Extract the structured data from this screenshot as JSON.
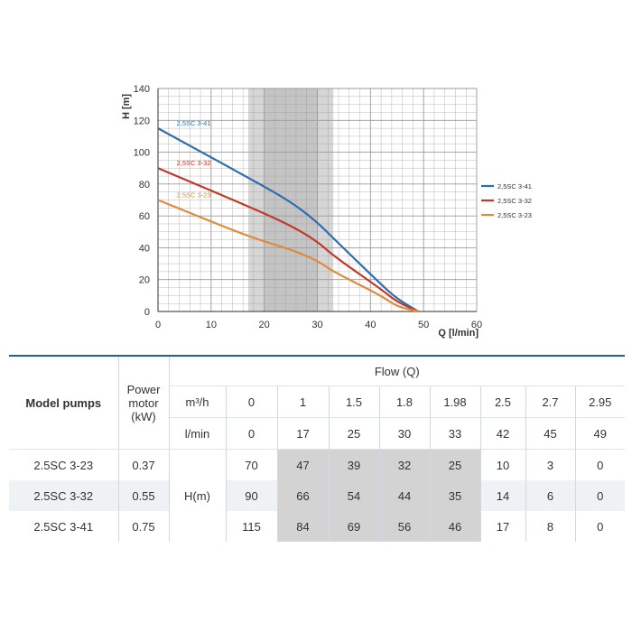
{
  "chart_data": {
    "type": "line",
    "xlabel": "Q [l/min]",
    "ylabel": "H [m]",
    "xlim": [
      0,
      60
    ],
    "ylim": [
      0,
      140
    ],
    "x_ticks": [
      0,
      10,
      20,
      30,
      40,
      50,
      60
    ],
    "y_ticks": [
      0,
      20,
      40,
      60,
      80,
      100,
      120,
      140
    ],
    "highlight_band": [
      17,
      33
    ],
    "grid": true,
    "legend": "right",
    "series": [
      {
        "name": "2,5SC 3-41",
        "color": "#2d6fad",
        "x": [
          0,
          17,
          25,
          30,
          33,
          42,
          45,
          49
        ],
        "y": [
          115,
          84,
          69,
          56,
          46,
          17,
          8,
          0
        ]
      },
      {
        "name": "2,5SC 3-32",
        "color": "#c0392b",
        "x": [
          0,
          17,
          25,
          30,
          33,
          42,
          45,
          49
        ],
        "y": [
          90,
          66,
          54,
          44,
          35,
          14,
          6,
          0
        ]
      },
      {
        "name": "2,5SC 3-23",
        "color": "#e08a3c",
        "x": [
          0,
          17,
          25,
          30,
          33,
          42,
          45,
          49
        ],
        "y": [
          70,
          47,
          39,
          32,
          25,
          10,
          3,
          0
        ]
      }
    ]
  },
  "table": {
    "model_header": "Model pumps",
    "power_header": "Power motor (kW)",
    "flow_header": "Flow (Q)",
    "m3h_label": "m³/h",
    "lmin_label": "l/min",
    "h_label": "H(m)",
    "m3h": [
      "0",
      "1",
      "1.5",
      "1.8",
      "1.98",
      "2.5",
      "2.7",
      "2.95"
    ],
    "lmin": [
      "0",
      "17",
      "25",
      "30",
      "33",
      "42",
      "45",
      "49"
    ],
    "rows": [
      {
        "model": "2.5SC 3-23",
        "power": "0.37",
        "values": [
          "70",
          "47",
          "39",
          "32",
          "25",
          "10",
          "3",
          "0"
        ]
      },
      {
        "model": "2.5SC 3-32",
        "power": "0.55",
        "values": [
          "90",
          "66",
          "54",
          "44",
          "35",
          "14",
          "6",
          "0"
        ]
      },
      {
        "model": "2.5SC 3-41",
        "power": "0.75",
        "values": [
          "115",
          "84",
          "69",
          "56",
          "46",
          "17",
          "8",
          "0"
        ]
      }
    ]
  }
}
